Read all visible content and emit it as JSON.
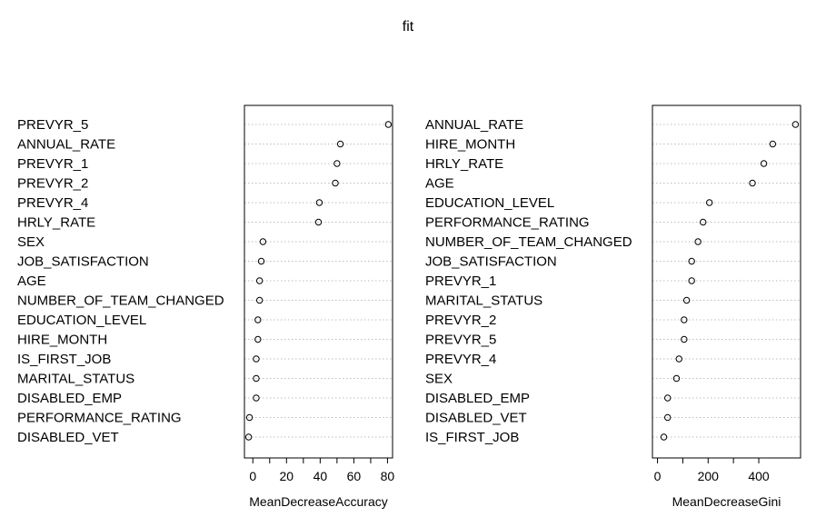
{
  "title": "fit",
  "colors": {
    "ink": "#000000",
    "grid": "#bebebe",
    "background": "#ffffff"
  },
  "chart_data": [
    {
      "type": "dotchart",
      "xlabel": "MeanDecreaseAccuracy",
      "xlim": [
        -5,
        83
      ],
      "xticks": [
        0,
        20,
        40,
        60,
        80
      ],
      "grid": "dotted horizontal",
      "categories": [
        "PREVYR_5",
        "ANNUAL_RATE",
        "PREVYR_1",
        "PREVYR_2",
        "PREVYR_4",
        "HRLY_RATE",
        "SEX",
        "JOB_SATISFACTION",
        "AGE",
        "NUMBER_OF_TEAM_CHANGED",
        "EDUCATION_LEVEL",
        "HIRE_MONTH",
        "IS_FIRST_JOB",
        "MARITAL_STATUS",
        "DISABLED_EMP",
        "PERFORMANCE_RATING",
        "DISABLED_VET"
      ],
      "values": [
        80.5,
        52,
        50,
        49,
        39.5,
        39,
        6,
        5,
        4,
        4,
        3,
        3,
        2,
        2,
        2,
        -2,
        -2.5
      ]
    },
    {
      "type": "dotchart",
      "xlabel": "MeanDecreaseGini",
      "xlim": [
        -20,
        565
      ],
      "xticks": [
        0,
        200,
        400
      ],
      "grid": "dotted horizontal",
      "categories": [
        "ANNUAL_RATE",
        "HIRE_MONTH",
        "HRLY_RATE",
        "AGE",
        "EDUCATION_LEVEL",
        "PERFORMANCE_RATING",
        "NUMBER_OF_TEAM_CHANGED",
        "JOB_SATISFACTION",
        "PREVYR_1",
        "MARITAL_STATUS",
        "PREVYR_2",
        "PREVYR_5",
        "PREVYR_4",
        "SEX",
        "DISABLED_EMP",
        "DISABLED_VET",
        "IS_FIRST_JOB"
      ],
      "values": [
        545,
        455,
        420,
        375,
        205,
        180,
        160,
        135,
        135,
        115,
        105,
        105,
        85,
        75,
        40,
        40,
        25
      ]
    }
  ]
}
